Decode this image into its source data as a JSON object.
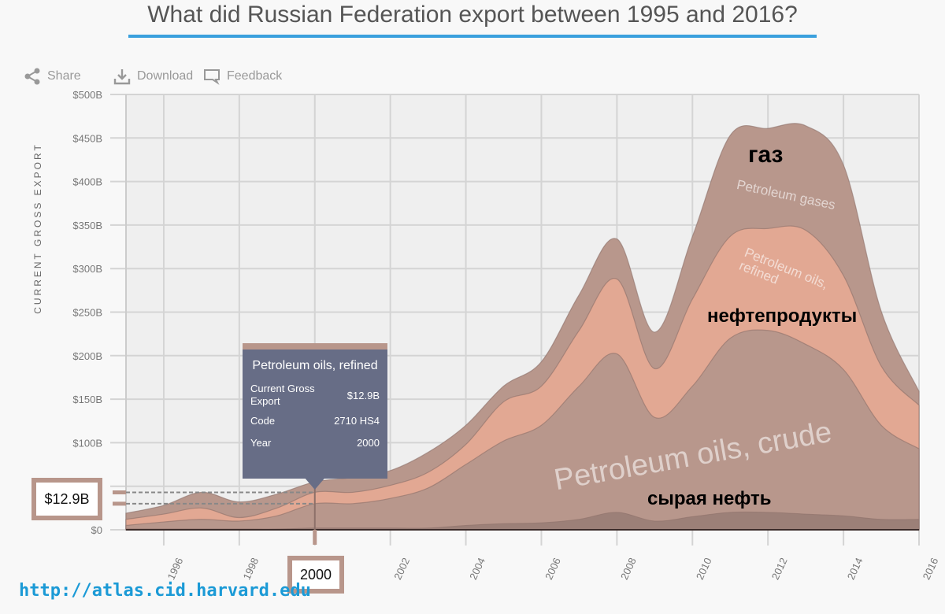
{
  "title": "What did Russian Federation export between 1995 and 2016?",
  "toolbar": {
    "share": "Share",
    "download": "Download",
    "feedback": "Feedback"
  },
  "colors": {
    "accent": "#3aa0dd",
    "gases": "#b8978c",
    "refined": "#e2a893",
    "crude": "#b8978c",
    "other": "#9c8078"
  },
  "chart_data": {
    "type": "area",
    "stacked": true,
    "ylabel": "CURRENT GROSS EXPORT",
    "ylim": [
      0,
      500
    ],
    "y_ticks": [
      "$0",
      "$50B",
      "$100B",
      "$150B",
      "$200B",
      "$250B",
      "$300B",
      "$350B",
      "$400B",
      "$450B",
      "$500B"
    ],
    "x_ticks": [
      "1996",
      "1998",
      "2000",
      "2002",
      "2004",
      "2006",
      "2008",
      "2010",
      "2012",
      "2014",
      "2016"
    ],
    "grid": true,
    "x": [
      1995,
      1996,
      1997,
      1998,
      1999,
      2000,
      2001,
      2002,
      2003,
      2004,
      2005,
      2006,
      2007,
      2008,
      2009,
      2010,
      2011,
      2012,
      2013,
      2014,
      2015,
      2016
    ],
    "series": [
      {
        "key": "other",
        "values": [
          1,
          1,
          1,
          1,
          1,
          2,
          2,
          2,
          2,
          5,
          7,
          8,
          12,
          20,
          10,
          15,
          20,
          20,
          18,
          16,
          12,
          12
        ]
      },
      {
        "key": "crude",
        "name": "Petroleum oils, crude",
        "values": [
          4,
          8,
          11,
          9,
          15,
          28,
          28,
          34,
          46,
          70,
          95,
          112,
          153,
          182,
          119,
          150,
          200,
          209,
          195,
          168,
          108,
          81
        ]
      },
      {
        "key": "refined",
        "name": "Petroleum oils, refined",
        "values": [
          7,
          9,
          13,
          4,
          9,
          13,
          13,
          15,
          18,
          23,
          45,
          45,
          64,
          86,
          56,
          100,
          117,
          117,
          131,
          108,
          68,
          50
        ]
      },
      {
        "key": "gases",
        "name": "Petroleum gases",
        "values": [
          7,
          10,
          18,
          18,
          16,
          12,
          17,
          17,
          23,
          22,
          18,
          28,
          41,
          46,
          42,
          72,
          116,
          115,
          120,
          127,
          63,
          16
        ]
      }
    ],
    "annotations": {
      "gases_ru": "газ",
      "refined_ru": "нефтепродукты",
      "crude_ru": "сырая нефть"
    }
  },
  "tooltip": {
    "title": "Petroleum oils, refined",
    "rows": [
      {
        "label": "Current Gross Export",
        "value": "$12.9B"
      },
      {
        "label": "Code",
        "value": "2710 HS4"
      },
      {
        "label": "Year",
        "value": "2000"
      }
    ]
  },
  "hover": {
    "value": "$12.9B",
    "year": "2000"
  },
  "source_url": "http://atlas.cid.harvard.edu"
}
